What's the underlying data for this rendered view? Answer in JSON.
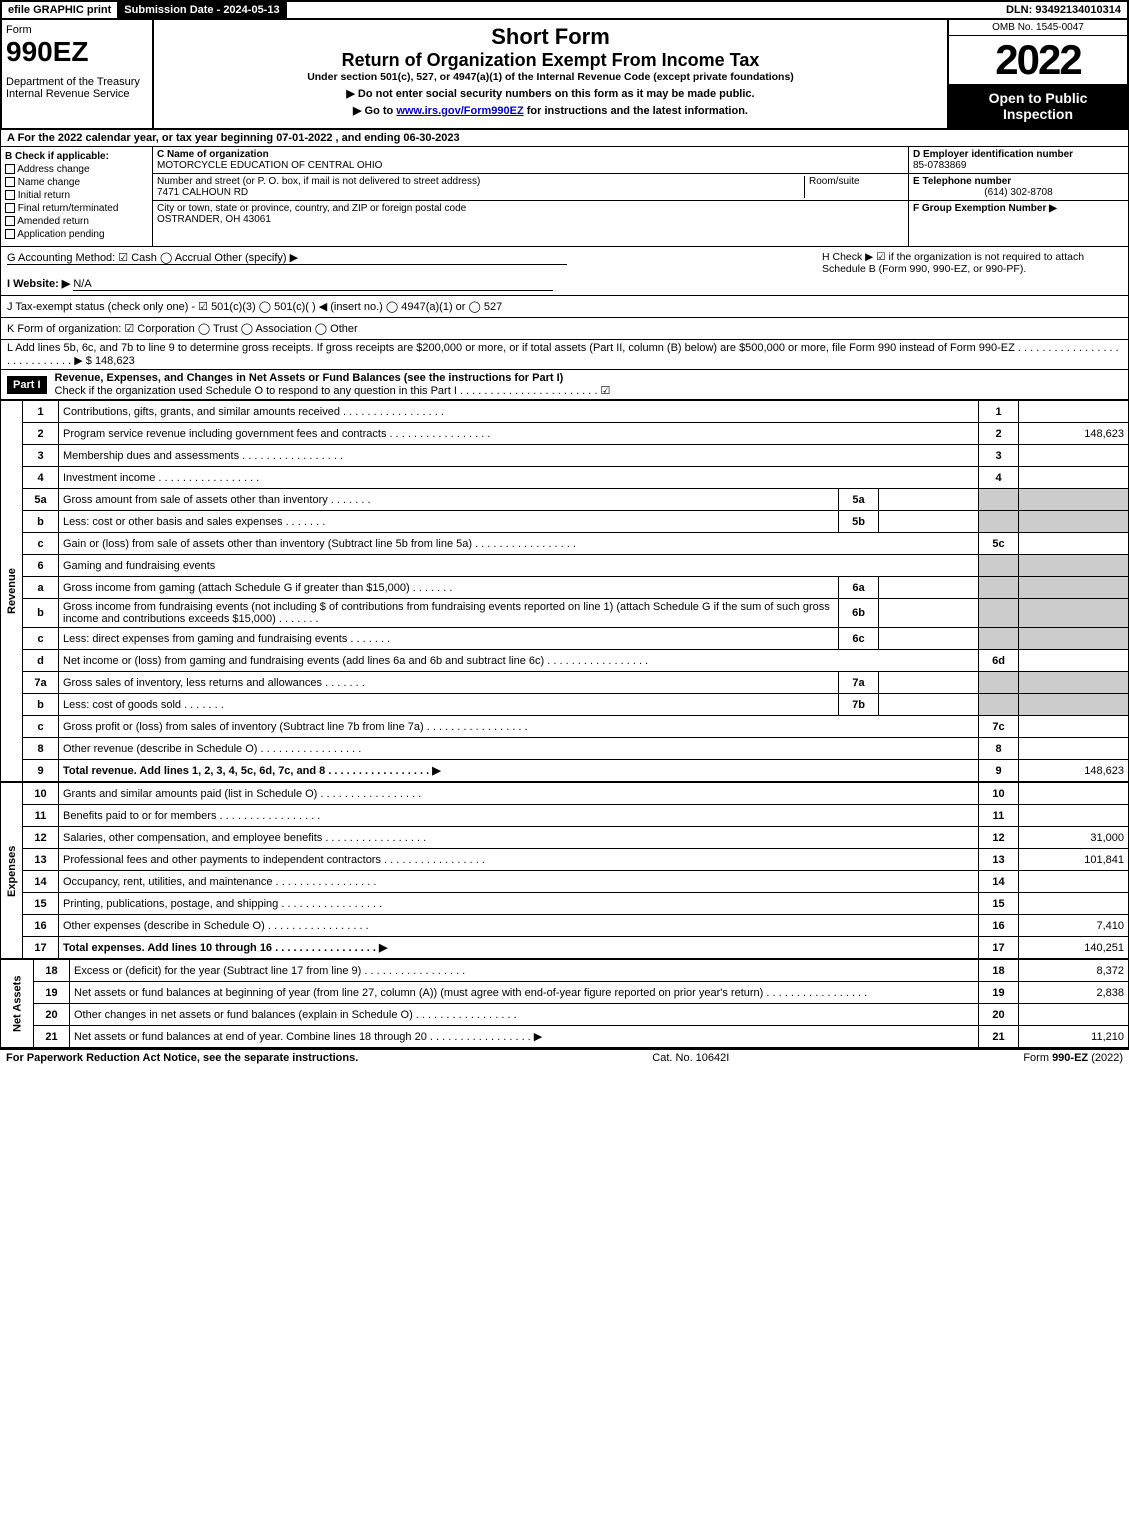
{
  "topbar": {
    "efile": "efile GRAPHIC print",
    "submission": "Submission Date - 2024-05-13",
    "dln": "DLN: 93492134010314"
  },
  "header": {
    "form_word": "Form",
    "form_num": "990EZ",
    "dept": "Department of the Treasury",
    "irs": "Internal Revenue Service",
    "short_form": "Short Form",
    "title": "Return of Organization Exempt From Income Tax",
    "under": "Under section 501(c), 527, or 4947(a)(1) of the Internal Revenue Code (except private foundations)",
    "note1": "▶ Do not enter social security numbers on this form as it may be made public.",
    "note2_pre": "▶ Go to ",
    "note2_link": "www.irs.gov/Form990EZ",
    "note2_post": " for instructions and the latest information.",
    "omb": "OMB No. 1545-0047",
    "year": "2022",
    "open": "Open to Public Inspection"
  },
  "rowA": "A  For the 2022 calendar year, or tax year beginning 07-01-2022 , and ending 06-30-2023",
  "colB": {
    "title": "B  Check if applicable:",
    "opts": [
      "Address change",
      "Name change",
      "Initial return",
      "Final return/terminated",
      "Amended return",
      "Application pending"
    ]
  },
  "colC": {
    "name_label": "C Name of organization",
    "name": "MOTORCYCLE EDUCATION OF CENTRAL OHIO",
    "street_label": "Number and street (or P. O. box, if mail is not delivered to street address)",
    "room_label": "Room/suite",
    "street": "7471 CALHOUN RD",
    "city_label": "City or town, state or province, country, and ZIP or foreign postal code",
    "city": "OSTRANDER, OH  43061"
  },
  "colD": {
    "d_label": "D Employer identification number",
    "ein": "85-0783869",
    "e_label": "E Telephone number",
    "phone": "(614) 302-8708",
    "f_label": "F Group Exemption Number  ▶"
  },
  "gh": {
    "g": "G Accounting Method:   ☑ Cash   ◯ Accrual   Other (specify) ▶",
    "i_label": "I Website: ▶",
    "i_val": "N/A",
    "h": "H  Check ▶  ☑  if the organization is not required to attach Schedule B (Form 990, 990-EZ, or 990-PF)."
  },
  "j": "J Tax-exempt status (check only one) - ☑ 501(c)(3) ◯ 501(c)(  ) ◀ (insert no.) ◯ 4947(a)(1) or ◯ 527",
  "k": "K Form of organization:   ☑ Corporation   ◯ Trust   ◯ Association   ◯ Other",
  "l": {
    "text": "L Add lines 5b, 6c, and 7b to line 9 to determine gross receipts. If gross receipts are $200,000 or more, or if total assets (Part II, column (B) below) are $500,000 or more, file Form 990 instead of Form 990-EZ",
    "arrow": "▶ $ 148,623"
  },
  "part1": {
    "label": "Part I",
    "title": "Revenue, Expenses, and Changes in Net Assets or Fund Balances (see the instructions for Part I)",
    "sub": "Check if the organization used Schedule O to respond to any question in this Part I",
    "checked": "☑"
  },
  "sections": {
    "revenue": "Revenue",
    "expenses": "Expenses",
    "netassets": "Net Assets"
  },
  "lines": [
    {
      "n": "1",
      "d": "Contributions, gifts, grants, and similar amounts received",
      "ref": "1",
      "amt": ""
    },
    {
      "n": "2",
      "d": "Program service revenue including government fees and contracts",
      "ref": "2",
      "amt": "148,623"
    },
    {
      "n": "3",
      "d": "Membership dues and assessments",
      "ref": "3",
      "amt": ""
    },
    {
      "n": "4",
      "d": "Investment income",
      "ref": "4",
      "amt": ""
    },
    {
      "n": "5a",
      "d": "Gross amount from sale of assets other than inventory",
      "sub": "5a"
    },
    {
      "n": "b",
      "d": "Less: cost or other basis and sales expenses",
      "sub": "5b"
    },
    {
      "n": "c",
      "d": "Gain or (loss) from sale of assets other than inventory (Subtract line 5b from line 5a)",
      "ref": "5c",
      "amt": ""
    },
    {
      "n": "6",
      "d": "Gaming and fundraising events"
    },
    {
      "n": "a",
      "d": "Gross income from gaming (attach Schedule G if greater than $15,000)",
      "sub": "6a"
    },
    {
      "n": "b",
      "d": "Gross income from fundraising events (not including $                      of contributions from fundraising events reported on line 1) (attach Schedule G if the sum of such gross income and contributions exceeds $15,000)",
      "sub": "6b"
    },
    {
      "n": "c",
      "d": "Less: direct expenses from gaming and fundraising events",
      "sub": "6c"
    },
    {
      "n": "d",
      "d": "Net income or (loss) from gaming and fundraising events (add lines 6a and 6b and subtract line 6c)",
      "ref": "6d",
      "amt": ""
    },
    {
      "n": "7a",
      "d": "Gross sales of inventory, less returns and allowances",
      "sub": "7a"
    },
    {
      "n": "b",
      "d": "Less: cost of goods sold",
      "sub": "7b"
    },
    {
      "n": "c",
      "d": "Gross profit or (loss) from sales of inventory (Subtract line 7b from line 7a)",
      "ref": "7c",
      "amt": ""
    },
    {
      "n": "8",
      "d": "Other revenue (describe in Schedule O)",
      "ref": "8",
      "amt": ""
    },
    {
      "n": "9",
      "d": "Total revenue. Add lines 1, 2, 3, 4, 5c, 6d, 7c, and 8",
      "ref": "9",
      "amt": "148,623",
      "bold": true,
      "arrow": true
    }
  ],
  "exp_lines": [
    {
      "n": "10",
      "d": "Grants and similar amounts paid (list in Schedule O)",
      "ref": "10",
      "amt": ""
    },
    {
      "n": "11",
      "d": "Benefits paid to or for members",
      "ref": "11",
      "amt": ""
    },
    {
      "n": "12",
      "d": "Salaries, other compensation, and employee benefits",
      "ref": "12",
      "amt": "31,000"
    },
    {
      "n": "13",
      "d": "Professional fees and other payments to independent contractors",
      "ref": "13",
      "amt": "101,841"
    },
    {
      "n": "14",
      "d": "Occupancy, rent, utilities, and maintenance",
      "ref": "14",
      "amt": ""
    },
    {
      "n": "15",
      "d": "Printing, publications, postage, and shipping",
      "ref": "15",
      "amt": ""
    },
    {
      "n": "16",
      "d": "Other expenses (describe in Schedule O)",
      "ref": "16",
      "amt": "7,410"
    },
    {
      "n": "17",
      "d": "Total expenses. Add lines 10 through 16",
      "ref": "17",
      "amt": "140,251",
      "bold": true,
      "arrow": true
    }
  ],
  "net_lines": [
    {
      "n": "18",
      "d": "Excess or (deficit) for the year (Subtract line 17 from line 9)",
      "ref": "18",
      "amt": "8,372"
    },
    {
      "n": "19",
      "d": "Net assets or fund balances at beginning of year (from line 27, column (A)) (must agree with end-of-year figure reported on prior year's return)",
      "ref": "19",
      "amt": "2,838"
    },
    {
      "n": "20",
      "d": "Other changes in net assets or fund balances (explain in Schedule O)",
      "ref": "20",
      "amt": ""
    },
    {
      "n": "21",
      "d": "Net assets or fund balances at end of year. Combine lines 18 through 20",
      "ref": "21",
      "amt": "11,210",
      "arrow": true
    }
  ],
  "footer": {
    "left": "For Paperwork Reduction Act Notice, see the separate instructions.",
    "center": "Cat. No. 10642I",
    "right_pre": "Form ",
    "right_bold": "990-EZ",
    "right_post": " (2022)"
  }
}
